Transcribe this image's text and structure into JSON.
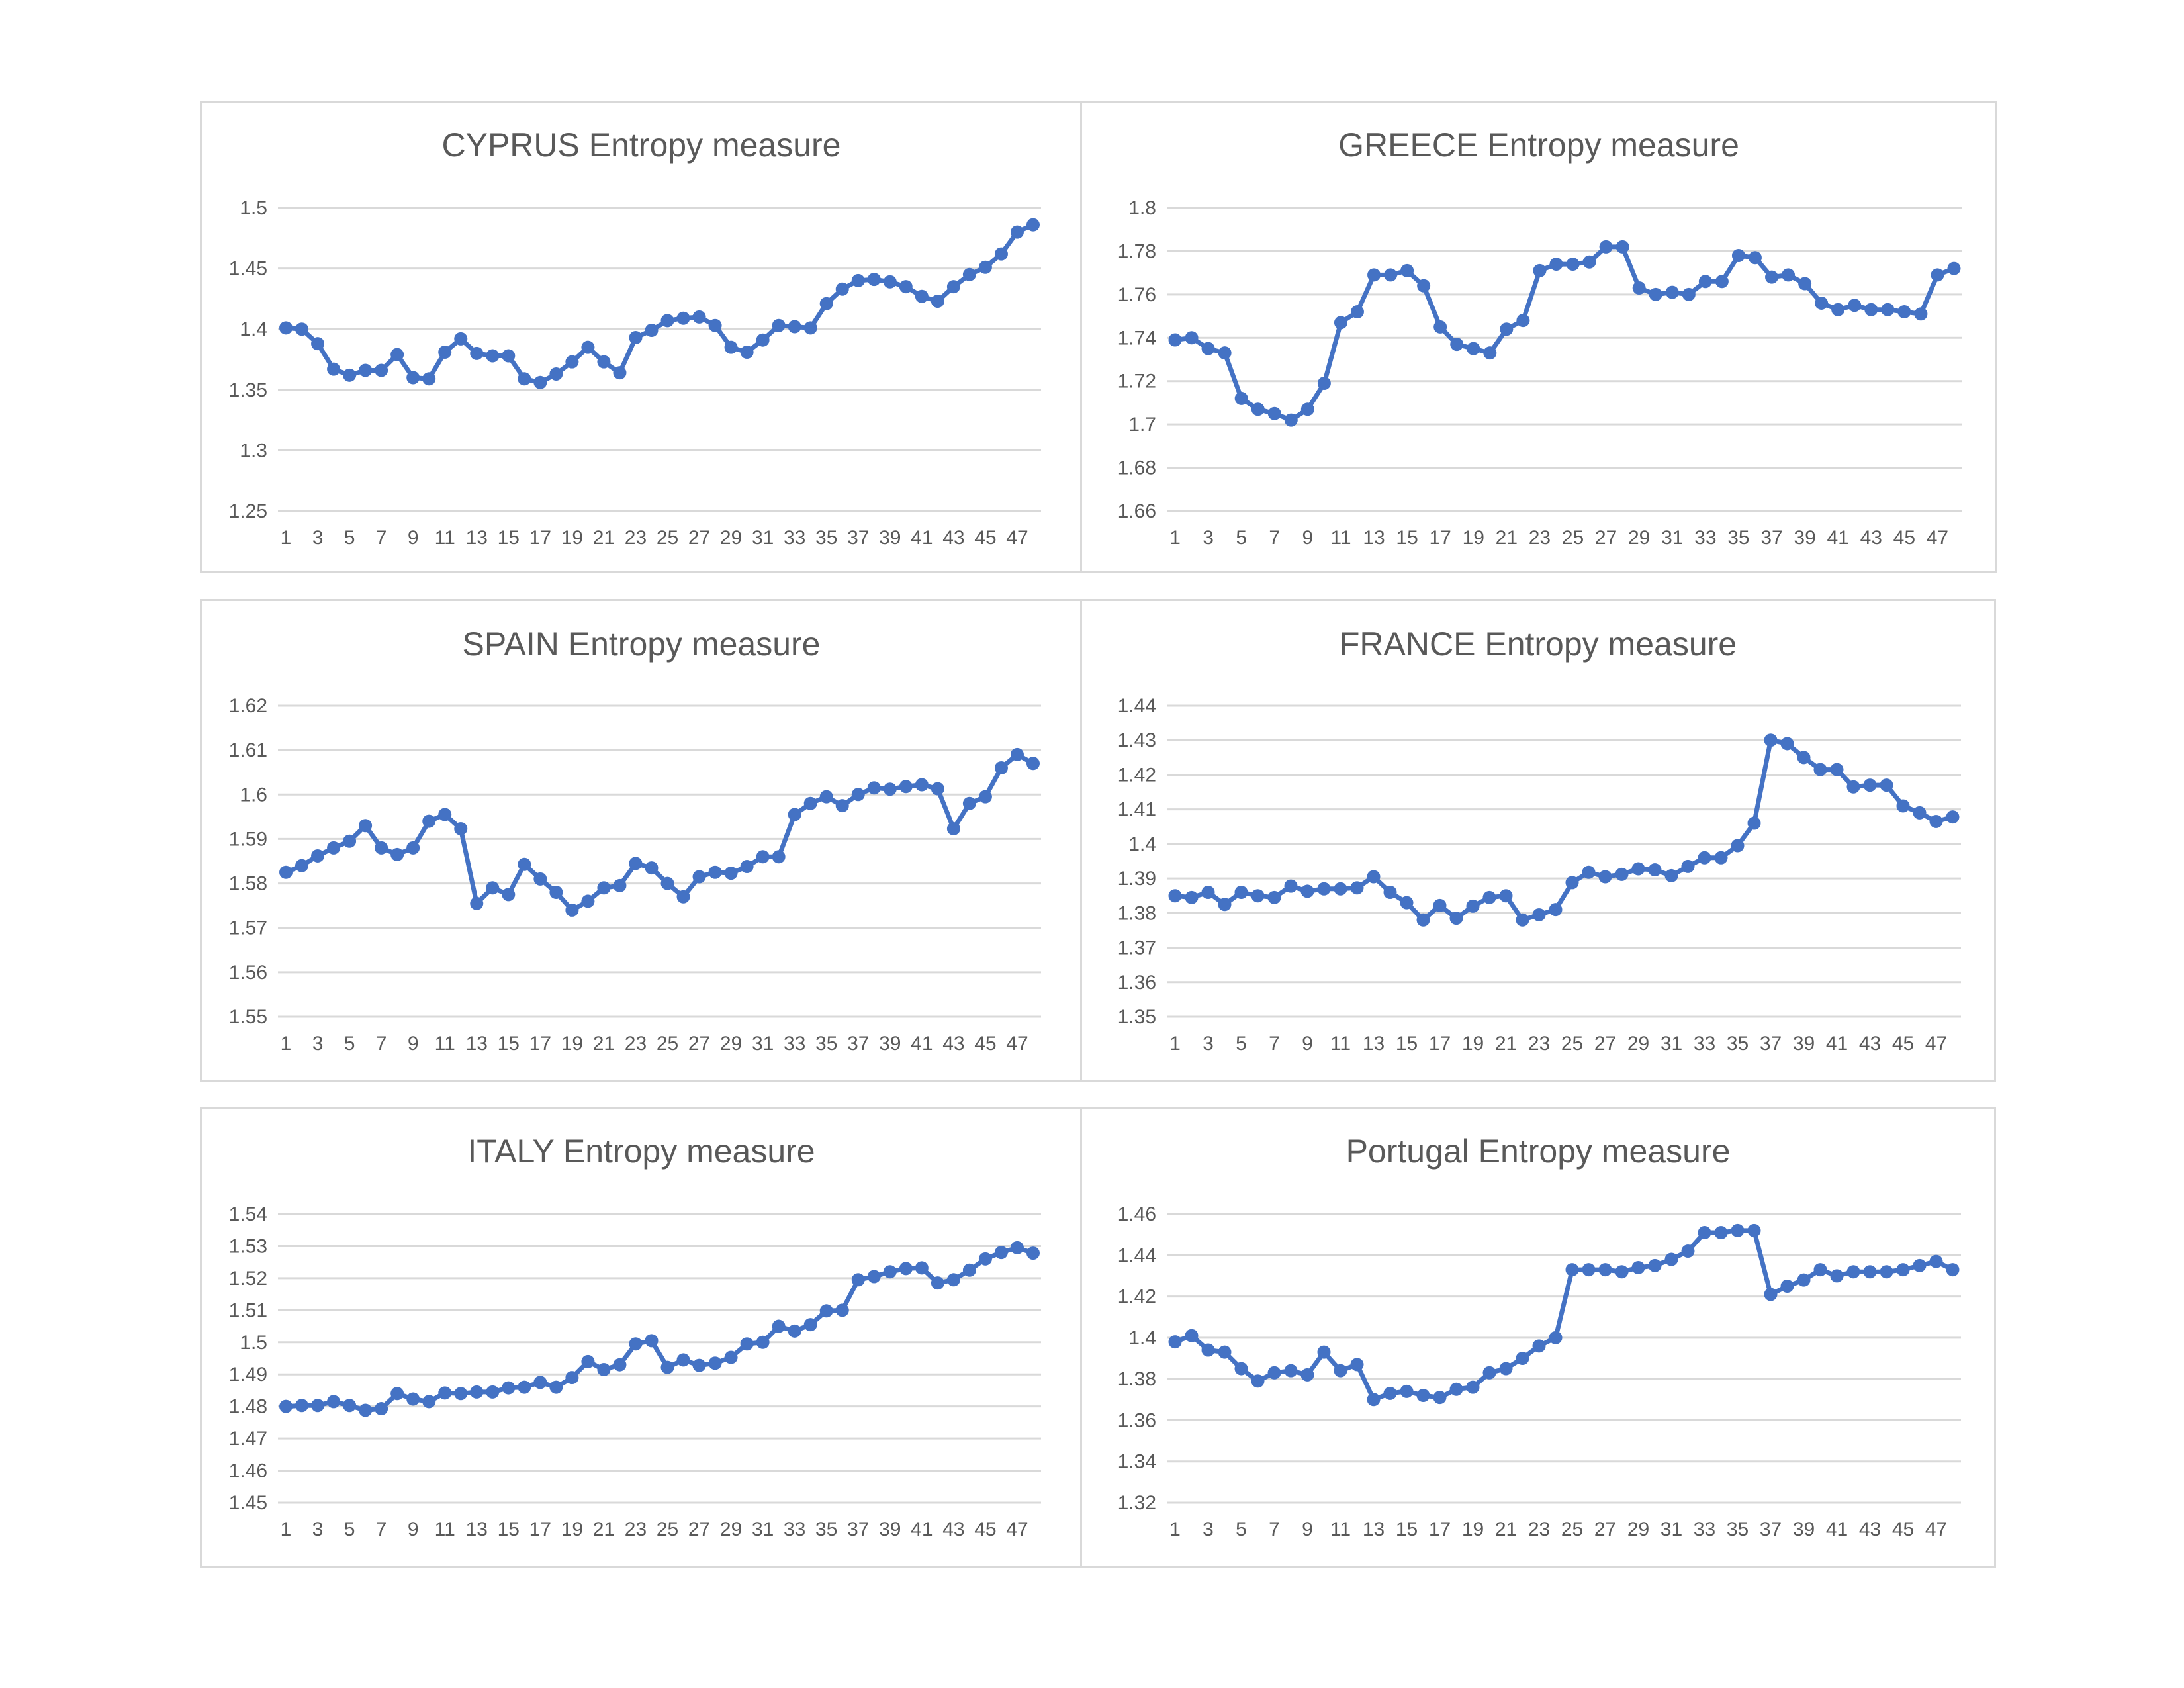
{
  "chart_data": [
    {
      "type": "line",
      "title": "CYPRUS Entropy measure",
      "xlabel": "",
      "ylabel": "",
      "ylim": [
        1.25,
        1.5
      ],
      "yticks": [
        1.25,
        1.3,
        1.35,
        1.4,
        1.45,
        1.5
      ],
      "ytick_labels": [
        "1.25",
        "1.3",
        "1.35",
        "1.4",
        "1.45",
        "1.5"
      ],
      "xtick_labels": [
        "1",
        "3",
        "5",
        "7",
        "9",
        "11",
        "13",
        "15",
        "17",
        "19",
        "21",
        "23",
        "25",
        "27",
        "29",
        "31",
        "33",
        "35",
        "37",
        "39",
        "41",
        "43",
        "45",
        "47"
      ],
      "grid": true,
      "legend": "none",
      "color": "#4472c4",
      "series": [
        {
          "x": [
            1,
            2,
            3,
            4,
            5,
            6,
            7,
            8,
            9,
            10,
            11,
            12,
            13,
            14,
            15,
            16,
            17,
            18,
            19,
            20,
            21,
            22,
            23,
            24,
            25,
            26,
            27,
            28,
            29,
            30,
            31,
            32,
            33,
            34,
            35,
            36,
            37,
            38,
            39,
            40,
            41,
            42,
            43,
            44,
            45,
            46,
            47,
            48
          ],
          "values": [
            1.401,
            1.4,
            1.388,
            1.367,
            1.362,
            1.366,
            1.366,
            1.379,
            1.36,
            1.359,
            1.381,
            1.392,
            1.38,
            1.378,
            1.378,
            1.359,
            1.356,
            1.363,
            1.373,
            1.385,
            1.373,
            1.364,
            1.393,
            1.399,
            1.407,
            1.409,
            1.41,
            1.403,
            1.385,
            1.381,
            1.391,
            1.403,
            1.402,
            1.401,
            1.421,
            1.433,
            1.44,
            1.441,
            1.439,
            1.435,
            1.427,
            1.423,
            1.435,
            1.445,
            1.451,
            1.462,
            1.48,
            1.486
          ]
        }
      ]
    },
    {
      "type": "line",
      "title": "GREECE Entropy measure",
      "xlabel": "",
      "ylabel": "",
      "ylim": [
        1.66,
        1.8
      ],
      "yticks": [
        1.66,
        1.68,
        1.7,
        1.72,
        1.74,
        1.76,
        1.78,
        1.8
      ],
      "ytick_labels": [
        "1.66",
        "1.68",
        "1.7",
        "1.72",
        "1.74",
        "1.76",
        "1.78",
        "1.8"
      ],
      "xtick_labels": [
        "1",
        "3",
        "5",
        "7",
        "9",
        "11",
        "13",
        "15",
        "17",
        "19",
        "21",
        "23",
        "25",
        "27",
        "29",
        "31",
        "33",
        "35",
        "37",
        "39",
        "41",
        "43",
        "45",
        "47"
      ],
      "grid": true,
      "legend": "none",
      "color": "#4472c4",
      "series": [
        {
          "x": [
            1,
            2,
            3,
            4,
            5,
            6,
            7,
            8,
            9,
            10,
            11,
            12,
            13,
            14,
            15,
            16,
            17,
            18,
            19,
            20,
            21,
            22,
            23,
            24,
            25,
            26,
            27,
            28,
            29,
            30,
            31,
            32,
            33,
            34,
            35,
            36,
            37,
            38,
            39,
            40,
            41,
            42,
            43,
            44,
            45,
            46,
            47,
            48
          ],
          "values": [
            1.739,
            1.74,
            1.735,
            1.733,
            1.712,
            1.707,
            1.705,
            1.702,
            1.707,
            1.719,
            1.747,
            1.752,
            1.769,
            1.769,
            1.771,
            1.764,
            1.745,
            1.737,
            1.735,
            1.733,
            1.744,
            1.748,
            1.771,
            1.774,
            1.774,
            1.775,
            1.782,
            1.782,
            1.763,
            1.76,
            1.761,
            1.76,
            1.766,
            1.766,
            1.778,
            1.777,
            1.768,
            1.769,
            1.765,
            1.756,
            1.753,
            1.755,
            1.753,
            1.753,
            1.752,
            1.751,
            1.769,
            1.772
          ]
        }
      ]
    },
    {
      "type": "line",
      "title": "SPAIN Entropy measure",
      "xlabel": "",
      "ylabel": "",
      "ylim": [
        1.55,
        1.62
      ],
      "yticks": [
        1.55,
        1.56,
        1.57,
        1.58,
        1.59,
        1.6,
        1.61,
        1.62
      ],
      "ytick_labels": [
        "1.55",
        "1.56",
        "1.57",
        "1.58",
        "1.59",
        "1.6",
        "1.61",
        "1.62"
      ],
      "xtick_labels": [
        "1",
        "3",
        "5",
        "7",
        "9",
        "11",
        "13",
        "15",
        "17",
        "19",
        "21",
        "23",
        "25",
        "27",
        "29",
        "31",
        "33",
        "35",
        "37",
        "39",
        "41",
        "43",
        "45",
        "47"
      ],
      "grid": true,
      "legend": "none",
      "color": "#4472c4",
      "series": [
        {
          "x": [
            1,
            2,
            3,
            4,
            5,
            6,
            7,
            8,
            9,
            10,
            11,
            12,
            13,
            14,
            15,
            16,
            17,
            18,
            19,
            20,
            21,
            22,
            23,
            24,
            25,
            26,
            27,
            28,
            29,
            30,
            31,
            32,
            33,
            34,
            35,
            36,
            37,
            38,
            39,
            40,
            41,
            42,
            43,
            44,
            45,
            46,
            47,
            48
          ],
          "values": [
            1.5825,
            1.584,
            1.5862,
            1.588,
            1.5895,
            1.593,
            1.588,
            1.5865,
            1.588,
            1.594,
            1.5955,
            1.5923,
            1.5755,
            1.579,
            1.5775,
            1.5843,
            1.581,
            1.578,
            1.574,
            1.576,
            1.579,
            1.5795,
            1.5845,
            1.5835,
            1.58,
            1.577,
            1.5815,
            1.5825,
            1.5823,
            1.5838,
            1.586,
            1.586,
            1.5955,
            1.598,
            1.5995,
            1.5975,
            1.6,
            1.6015,
            1.6012,
            1.6018,
            1.6022,
            1.6013,
            1.5923,
            1.598,
            1.5995,
            1.606,
            1.609,
            1.607
          ]
        }
      ]
    },
    {
      "type": "line",
      "title": "FRANCE Entropy measure",
      "xlabel": "",
      "ylabel": "",
      "ylim": [
        1.35,
        1.44
      ],
      "yticks": [
        1.35,
        1.36,
        1.37,
        1.38,
        1.39,
        1.4,
        1.41,
        1.42,
        1.43,
        1.44
      ],
      "ytick_labels": [
        "1.35",
        "1.36",
        "1.37",
        "1.38",
        "1.39",
        "1.4",
        "1.41",
        "1.42",
        "1.43",
        "1.44"
      ],
      "xtick_labels": [
        "1",
        "3",
        "5",
        "7",
        "9",
        "11",
        "13",
        "15",
        "17",
        "19",
        "21",
        "23",
        "25",
        "27",
        "29",
        "31",
        "33",
        "35",
        "37",
        "39",
        "41",
        "43",
        "45",
        "47"
      ],
      "grid": true,
      "legend": "none",
      "color": "#4472c4",
      "series": [
        {
          "x": [
            1,
            2,
            3,
            4,
            5,
            6,
            7,
            8,
            9,
            10,
            11,
            12,
            13,
            14,
            15,
            16,
            17,
            18,
            19,
            20,
            21,
            22,
            23,
            24,
            25,
            26,
            27,
            28,
            29,
            30,
            31,
            32,
            33,
            34,
            35,
            36,
            37,
            38,
            39,
            40,
            41,
            42,
            43,
            44,
            45,
            46,
            47,
            48
          ],
          "values": [
            1.385,
            1.3845,
            1.386,
            1.3825,
            1.386,
            1.385,
            1.3845,
            1.3878,
            1.3863,
            1.387,
            1.387,
            1.3873,
            1.3905,
            1.386,
            1.383,
            1.378,
            1.3822,
            1.3785,
            1.382,
            1.3845,
            1.385,
            1.378,
            1.3795,
            1.381,
            1.3888,
            1.3918,
            1.3905,
            1.3912,
            1.3928,
            1.3925,
            1.3908,
            1.3935,
            1.396,
            1.396,
            1.3995,
            1.406,
            1.43,
            1.429,
            1.425,
            1.4215,
            1.4215,
            1.4165,
            1.417,
            1.417,
            1.411,
            1.409,
            1.4065,
            1.4078
          ]
        }
      ]
    },
    {
      "type": "line",
      "title": "ITALY Entropy measure",
      "xlabel": "",
      "ylabel": "",
      "ylim": [
        1.45,
        1.54
      ],
      "yticks": [
        1.45,
        1.46,
        1.47,
        1.48,
        1.49,
        1.5,
        1.51,
        1.52,
        1.53,
        1.54
      ],
      "ytick_labels": [
        "1.45",
        "1.46",
        "1.47",
        "1.48",
        "1.49",
        "1.5",
        "1.51",
        "1.52",
        "1.53",
        "1.54"
      ],
      "xtick_labels": [
        "1",
        "3",
        "5",
        "7",
        "9",
        "11",
        "13",
        "15",
        "17",
        "19",
        "21",
        "23",
        "25",
        "27",
        "29",
        "31",
        "33",
        "35",
        "37",
        "39",
        "41",
        "43",
        "45",
        "47"
      ],
      "grid": true,
      "legend": "none",
      "color": "#4472c4",
      "series": [
        {
          "x": [
            1,
            2,
            3,
            4,
            5,
            6,
            7,
            8,
            9,
            10,
            11,
            12,
            13,
            14,
            15,
            16,
            17,
            18,
            19,
            20,
            21,
            22,
            23,
            24,
            25,
            26,
            27,
            28,
            29,
            30,
            31,
            32,
            33,
            34,
            35,
            36,
            37,
            38,
            39,
            40,
            41,
            42,
            43,
            44,
            45,
            46,
            47,
            48
          ],
          "values": [
            1.48,
            1.4803,
            1.4803,
            1.4815,
            1.4803,
            1.4788,
            1.4793,
            1.484,
            1.4823,
            1.4815,
            1.4842,
            1.484,
            1.4845,
            1.4845,
            1.4858,
            1.486,
            1.4875,
            1.486,
            1.489,
            1.494,
            1.4915,
            1.493,
            1.4995,
            1.5005,
            1.4922,
            1.4945,
            1.4928,
            1.4935,
            1.4953,
            1.4995,
            1.5,
            1.505,
            1.5035,
            1.5055,
            1.5098,
            1.51,
            1.5195,
            1.5205,
            1.522,
            1.523,
            1.5232,
            1.5185,
            1.5195,
            1.5225,
            1.526,
            1.528,
            1.5295,
            1.5278
          ]
        }
      ]
    },
    {
      "type": "line",
      "title": "Portugal Entropy measure",
      "xlabel": "",
      "ylabel": "",
      "ylim": [
        1.32,
        1.46
      ],
      "yticks": [
        1.32,
        1.34,
        1.36,
        1.38,
        1.4,
        1.42,
        1.44,
        1.46
      ],
      "ytick_labels": [
        "1.32",
        "1.34",
        "1.36",
        "1.38",
        "1.4",
        "1.42",
        "1.44",
        "1.46"
      ],
      "xtick_labels": [
        "1",
        "3",
        "5",
        "7",
        "9",
        "11",
        "13",
        "15",
        "17",
        "19",
        "21",
        "23",
        "25",
        "27",
        "29",
        "31",
        "33",
        "35",
        "37",
        "39",
        "41",
        "43",
        "45",
        "47"
      ],
      "grid": true,
      "legend": "none",
      "color": "#4472c4",
      "series": [
        {
          "x": [
            1,
            2,
            3,
            4,
            5,
            6,
            7,
            8,
            9,
            10,
            11,
            12,
            13,
            14,
            15,
            16,
            17,
            18,
            19,
            20,
            21,
            22,
            23,
            24,
            25,
            26,
            27,
            28,
            29,
            30,
            31,
            32,
            33,
            34,
            35,
            36,
            37,
            38,
            39,
            40,
            41,
            42,
            43,
            44,
            45,
            46,
            47,
            48
          ],
          "values": [
            1.398,
            1.401,
            1.394,
            1.393,
            1.385,
            1.379,
            1.383,
            1.384,
            1.382,
            1.393,
            1.384,
            1.387,
            1.37,
            1.373,
            1.374,
            1.372,
            1.371,
            1.375,
            1.376,
            1.383,
            1.385,
            1.39,
            1.396,
            1.4,
            1.433,
            1.433,
            1.433,
            1.432,
            1.434,
            1.435,
            1.438,
            1.442,
            1.451,
            1.451,
            1.452,
            1.452,
            1.421,
            1.425,
            1.428,
            1.433,
            1.43,
            1.432,
            1.432,
            1.432,
            1.433,
            1.435,
            1.437,
            1.433
          ]
        }
      ]
    }
  ]
}
